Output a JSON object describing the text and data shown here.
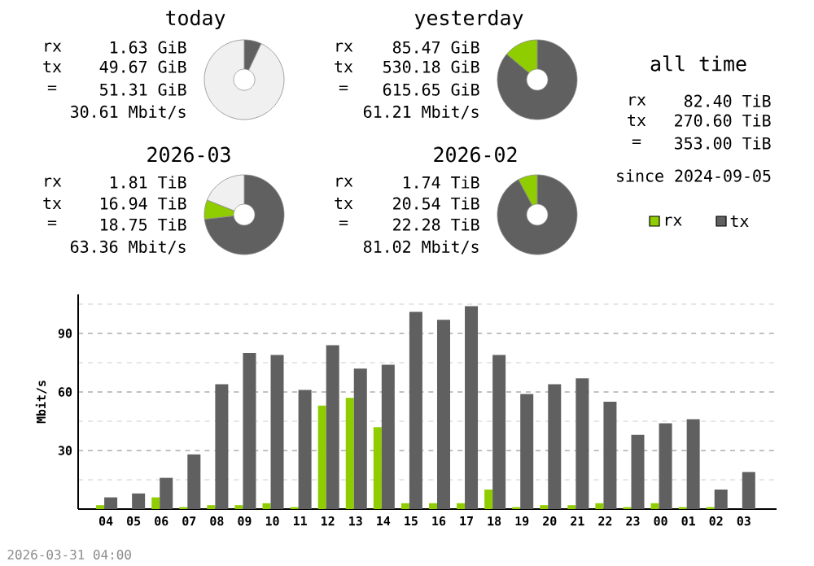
{
  "chart_data": [
    {
      "type": "donut",
      "title": "today",
      "categories": [
        null,
        null
      ],
      "values": [
        7,
        93
      ],
      "colors": [
        "#606060",
        "#f0f0f0"
      ],
      "annotations": [
        "rx",
        "1.63 GiB",
        "tx",
        "49.67 GiB",
        "=",
        "51.31 GiB",
        "30.61 Mbit/s"
      ]
    },
    {
      "type": "donut",
      "title": "yesterday",
      "categories": [
        null,
        null
      ],
      "values": [
        86.1,
        13.9
      ],
      "colors": [
        "#606060",
        "#8fcc00"
      ],
      "annotations": [
        "rx",
        "85.47 GiB",
        "tx",
        "530.18 GiB",
        "=",
        "615.65 GiB",
        "61.21 Mbit/s"
      ]
    },
    {
      "type": "donut",
      "title": "2026-03",
      "categories": [
        null,
        null,
        null
      ],
      "values": [
        73.2,
        7.8,
        19
      ],
      "colors": [
        "#606060",
        "#8fcc00",
        "#f0f0f0"
      ],
      "annotations": [
        "rx",
        "1.81 TiB",
        "tx",
        "16.94 TiB",
        "=",
        "18.75 TiB",
        "63.36 Mbit/s"
      ]
    },
    {
      "type": "donut",
      "title": "2026-02",
      "categories": [
        null,
        null
      ],
      "values": [
        92.2,
        7.8
      ],
      "colors": [
        "#606060",
        "#8fcc00"
      ],
      "annotations": [
        "rx",
        "1.74 TiB",
        "tx",
        "20.54 TiB",
        "=",
        "22.28 TiB",
        "81.02 Mbit/s"
      ]
    },
    {
      "type": "other",
      "title": "all time",
      "annotations": [
        "rx",
        "82.40 TiB",
        "tx",
        "270.60 TiB",
        "=",
        "353.00 TiB",
        "since 2024-09-05"
      ]
    },
    {
      "type": "bar",
      "categories": [
        "04",
        "05",
        "06",
        "07",
        "08",
        "09",
        "10",
        "11",
        "12",
        "13",
        "14",
        "15",
        "16",
        "17",
        "18",
        "19",
        "20",
        "21",
        "22",
        "23",
        "00",
        "01",
        "02",
        "03"
      ],
      "series": [
        {
          "name": "rx",
          "color": "#8fcc00",
          "values": [
            2,
            0,
            6,
            1,
            2,
            2,
            3,
            1,
            53,
            57,
            42,
            3,
            3,
            3,
            10,
            1,
            2,
            2,
            3,
            1,
            3,
            1,
            1,
            0
          ]
        },
        {
          "name": "tx",
          "color": "#606060",
          "values": [
            6,
            8,
            16,
            28,
            64,
            80,
            79,
            61,
            84,
            72,
            74,
            101,
            97,
            104,
            79,
            59,
            64,
            67,
            55,
            38,
            44,
            46,
            10,
            19
          ]
        }
      ],
      "ylabel": "Mbit/s",
      "ylim": [
        0,
        110
      ],
      "yticks": [
        {
          "value": 15,
          "label": null
        },
        30,
        {
          "value": 45,
          "label": null
        },
        60,
        {
          "value": 75,
          "label": null
        },
        90,
        {
          "value": 105,
          "label": null
        }
      ],
      "grid": "y",
      "legend": "top right",
      "annotations": [
        "2026-03-31 04:00"
      ]
    }
  ]
}
